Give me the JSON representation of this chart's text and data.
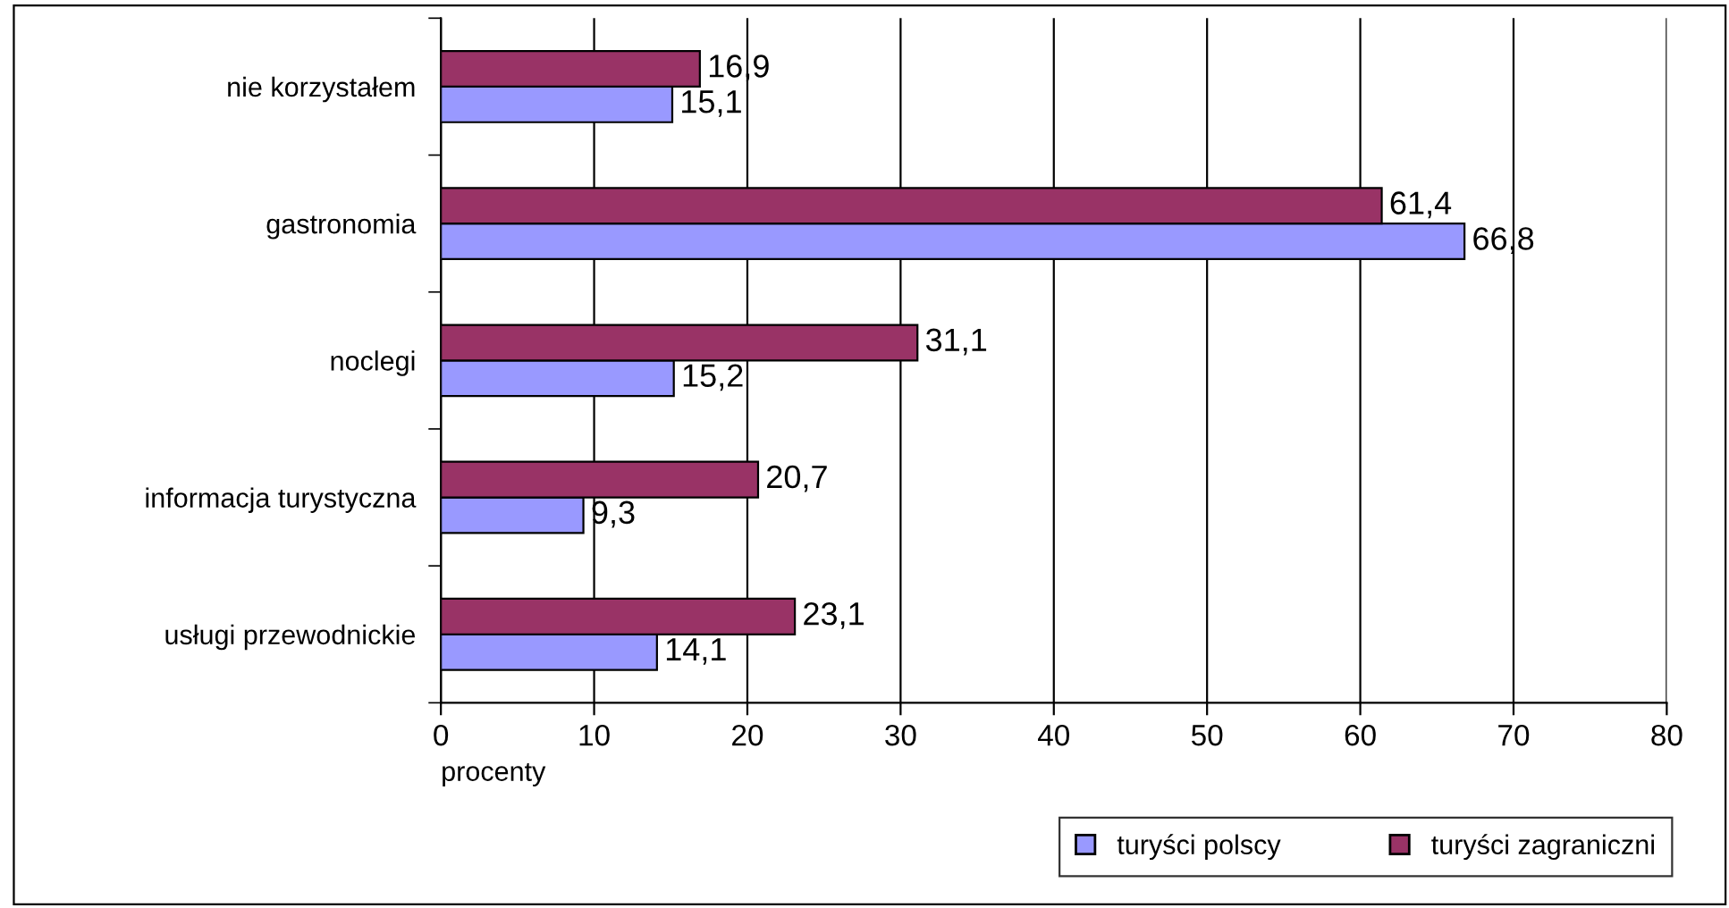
{
  "chart_data": {
    "type": "bar",
    "orientation": "horizontal",
    "xlabel": "procenty",
    "categories": [
      "nie korzystałem",
      "gastronomia",
      "noclegi",
      "informacja turystyczna",
      "usługi przewodnickie"
    ],
    "series": [
      {
        "name": "turyści polscy",
        "color": "#9999ff",
        "values": [
          15.1,
          66.8,
          15.2,
          9.3,
          14.1
        ],
        "value_labels": [
          "15,1",
          "66,8",
          "15,2",
          "9,3",
          "14,1"
        ]
      },
      {
        "name": "turyści zagraniczni",
        "color": "#993366",
        "values": [
          16.9,
          61.4,
          31.1,
          20.7,
          23.1
        ],
        "value_labels": [
          "16,9",
          "61,4",
          "31,1",
          "20,7",
          "23,1"
        ]
      }
    ],
    "xlim": [
      0,
      80
    ],
    "xticks": [
      0,
      10,
      20,
      30,
      40,
      50,
      60,
      70,
      80
    ],
    "grid": "x",
    "legend": "bottom right"
  }
}
